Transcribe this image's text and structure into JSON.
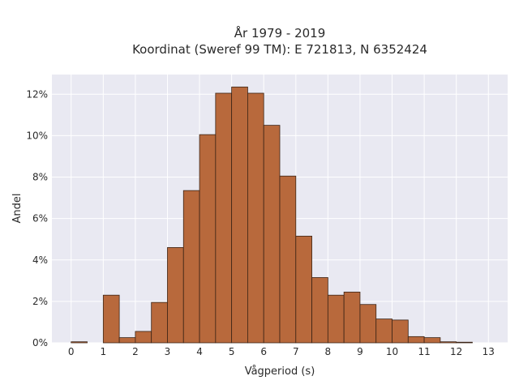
{
  "chart_data": {
    "type": "bar",
    "title_line1": "År 1979 - 2019",
    "title_line2": "Koordinat (Sweref 99 TM): E 721813, N 6352424",
    "xlabel": "Vågperiod (s)",
    "ylabel": "Andel",
    "bin_width": 0.5,
    "bin_starts": [
      0,
      0.5,
      1,
      1.5,
      2,
      2.5,
      3,
      3.5,
      4,
      4.5,
      5,
      5.5,
      6,
      6.5,
      7,
      7.5,
      8,
      8.5,
      9,
      9.5,
      10,
      10.5,
      11,
      11.5,
      12,
      12.5
    ],
    "values": [
      0.05,
      0,
      2.3,
      0.25,
      0.55,
      1.95,
      4.6,
      7.35,
      10.05,
      12.05,
      12.35,
      12.05,
      10.5,
      8.05,
      5.15,
      3.15,
      2.3,
      2.45,
      1.85,
      1.15,
      1.1,
      0.3,
      0.25,
      0.05,
      0.03,
      0
    ],
    "xlim": [
      -0.6,
      13.6
    ],
    "ylim": [
      0,
      12.95
    ],
    "x_ticks": [
      0,
      1,
      2,
      3,
      4,
      5,
      6,
      7,
      8,
      9,
      10,
      11,
      12,
      13
    ],
    "y_ticks": [
      0,
      2,
      4,
      6,
      8,
      10,
      12
    ],
    "y_tick_labels": [
      "0%",
      "2%",
      "4%",
      "6%",
      "8%",
      "10%",
      "12%"
    ],
    "grid": true,
    "colors": {
      "bar_fill": "#b8693c",
      "bar_stroke": "#3b2416",
      "plot_background": "#e9e9f2",
      "grid": "#ffffff"
    }
  }
}
